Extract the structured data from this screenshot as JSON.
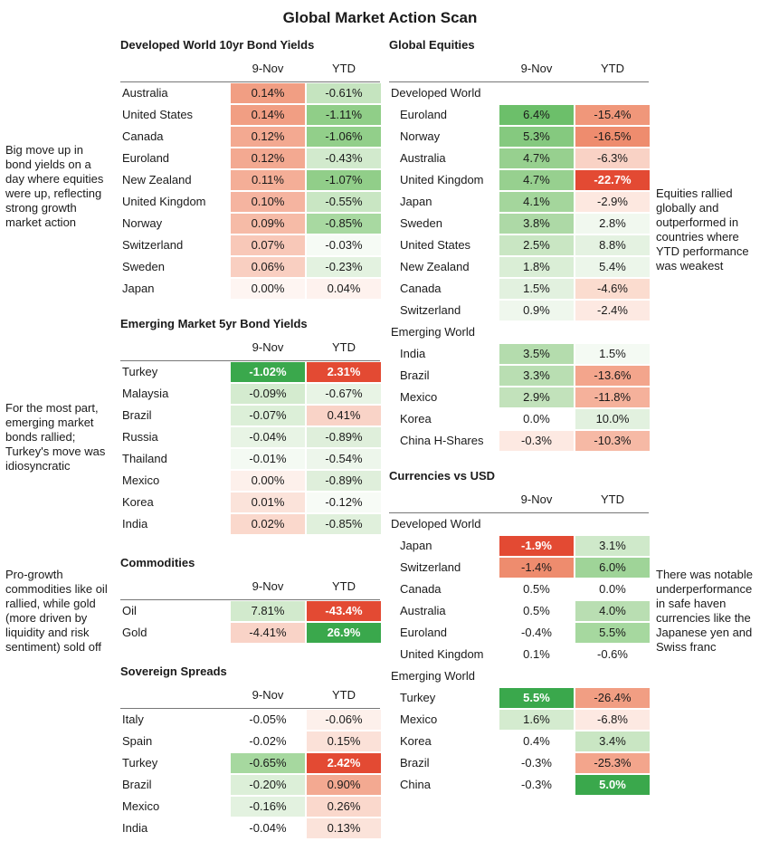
{
  "title": "Global Market Action Scan",
  "notes": [
    "Big move up in bond yields on a day where equities were up, reflecting strong growth market action",
    "For the most part, emerging market bonds rallied; Turkey's move was idiosyncratic",
    "Pro-growth commodities like oil rallied, while gold (more driven by liquidity and risk sentiment) sold off",
    "Equities rallied globally and outperformed in countries where YTD performance was weakest",
    "There was notable underperformance in safe haven currencies like the Japanese yen and Swiss franc"
  ],
  "sections": {
    "dev_bonds": {
      "title": "Developed World 10yr Bond Yields",
      "columns": [
        "9-Nov",
        "YTD"
      ],
      "rows": [
        {
          "label": "Australia",
          "v1": "0.14%",
          "v2": "-0.61%",
          "c1": "#f19e83",
          "c2": "#c5e4bf"
        },
        {
          "label": "United States",
          "v1": "0.14%",
          "v2": "-1.11%",
          "c1": "#f19e83",
          "c2": "#90ce88"
        },
        {
          "label": "Canada",
          "v1": "0.12%",
          "v2": "-1.06%",
          "c1": "#f3a991",
          "c2": "#92cf8a"
        },
        {
          "label": "Euroland",
          "v1": "0.12%",
          "v2": "-0.43%",
          "c1": "#f3a991",
          "c2": "#d2eacd"
        },
        {
          "label": "New Zealand",
          "v1": "0.11%",
          "v2": "-1.07%",
          "c1": "#f4ae97",
          "c2": "#91ce89"
        },
        {
          "label": "United Kingdom",
          "v1": "0.10%",
          "v2": "-0.55%",
          "c1": "#f5b4a0",
          "c2": "#c9e6c3"
        },
        {
          "label": "Norway",
          "v1": "0.09%",
          "v2": "-0.85%",
          "c1": "#f6bba7",
          "c2": "#a8d9a1"
        },
        {
          "label": "Switzerland",
          "v1": "0.07%",
          "v2": "-0.03%",
          "c1": "#f8c8b8",
          "c2": "#f6fbf5"
        },
        {
          "label": "Sweden",
          "v1": "0.06%",
          "v2": "-0.23%",
          "c1": "#f9cfc1",
          "c2": "#e3f2e0"
        },
        {
          "label": "Japan",
          "v1": "0.00%",
          "v2": "0.04%",
          "c1": "#fef5f2",
          "c2": "#fef2ee"
        }
      ]
    },
    "em_bonds": {
      "title": "Emerging Market 5yr Bond Yields",
      "columns": [
        "9-Nov",
        "YTD"
      ],
      "rows": [
        {
          "label": "Turkey",
          "v1": "-1.02%",
          "v2": "2.31%",
          "c1": "#3aa84c",
          "c2": "#e34a33",
          "b1": true,
          "b2": true
        },
        {
          "label": "Malaysia",
          "v1": "-0.09%",
          "v2": "-0.67%",
          "c1": "#d4ebcf",
          "c2": "#e8f4e5"
        },
        {
          "label": "Brazil",
          "v1": "-0.07%",
          "v2": "0.41%",
          "c1": "#dcefd8",
          "c2": "#f9d3c7"
        },
        {
          "label": "Russia",
          "v1": "-0.04%",
          "v2": "-0.89%",
          "c1": "#e8f4e5",
          "c2": "#dfefdb"
        },
        {
          "label": "Thailand",
          "v1": "-0.01%",
          "v2": "-0.54%",
          "c1": "#f4faf3",
          "c2": "#edf6eb"
        },
        {
          "label": "Mexico",
          "v1": "0.00%",
          "v2": "-0.89%",
          "c1": "#fdf0eb",
          "c2": "#dfefdb"
        },
        {
          "label": "Korea",
          "v1": "0.01%",
          "v2": "-0.12%",
          "c1": "#fbe3da",
          "c2": "#f7fbf6"
        },
        {
          "label": "India",
          "v1": "0.02%",
          "v2": "-0.85%",
          "c1": "#fad8cc",
          "c2": "#e0f0dc"
        }
      ]
    },
    "commodities": {
      "title": "Commodities",
      "columns": [
        "9-Nov",
        "YTD"
      ],
      "rows": [
        {
          "label": "Oil",
          "v1": "7.81%",
          "v2": "-43.4%",
          "c1": "#d2eacd",
          "c2": "#e34a33",
          "b2": true
        },
        {
          "label": "Gold",
          "v1": "-4.41%",
          "v2": "26.9%",
          "c1": "#f9d3c7",
          "c2": "#3aa84c",
          "b2": true
        }
      ]
    },
    "spreads": {
      "title": "Sovereign Spreads",
      "columns": [
        "9-Nov",
        "YTD"
      ],
      "rows": [
        {
          "label": "Italy",
          "v1": "-0.05%",
          "v2": "-0.06%",
          "c1": "#ffffff",
          "c2": "#fdf0eb"
        },
        {
          "label": "Spain",
          "v1": "-0.02%",
          "v2": "0.15%",
          "c1": "#ffffff",
          "c2": "#fbe1d8"
        },
        {
          "label": "Turkey",
          "v1": "-0.65%",
          "v2": "2.42%",
          "c1": "#a6d89f",
          "c2": "#e34a33",
          "b2": true
        },
        {
          "label": "Brazil",
          "v1": "-0.20%",
          "v2": "0.90%",
          "c1": "#dcefd8",
          "c2": "#f3a991"
        },
        {
          "label": "Mexico",
          "v1": "-0.16%",
          "v2": "0.26%",
          "c1": "#e3f2e0",
          "c2": "#fad8cc"
        },
        {
          "label": "India",
          "v1": "-0.04%",
          "v2": "0.13%",
          "c1": "#ffffff",
          "c2": "#fbe3da"
        }
      ]
    },
    "equities": {
      "title": "Global Equities",
      "columns": [
        "9-Nov",
        "YTD"
      ],
      "groups": [
        {
          "name": "Developed World",
          "rows": [
            {
              "label": "Euroland",
              "v1": "6.4%",
              "v2": "-15.4%",
              "c1": "#6cbf6a",
              "c2": "#f0977a"
            },
            {
              "label": "Norway",
              "v1": "5.3%",
              "v2": "-16.5%",
              "c1": "#85c97f",
              "c2": "#ee8c6e"
            },
            {
              "label": "Australia",
              "v1": "4.7%",
              "v2": "-6.3%",
              "c1": "#97d08f",
              "c2": "#f9d2c5"
            },
            {
              "label": "United Kingdom",
              "v1": "4.7%",
              "v2": "-22.7%",
              "c1": "#97d08f",
              "c2": "#e34a33",
              "b2": true
            },
            {
              "label": "Japan",
              "v1": "4.1%",
              "v2": "-2.9%",
              "c1": "#a4d69c",
              "c2": "#fde8e0"
            },
            {
              "label": "Sweden",
              "v1": "3.8%",
              "v2": "2.8%",
              "c1": "#add9a6",
              "c2": "#f1f8ef"
            },
            {
              "label": "United States",
              "v1": "2.5%",
              "v2": "8.8%",
              "c1": "#c9e6c3",
              "c2": "#e4f2e1"
            },
            {
              "label": "New Zealand",
              "v1": "1.8%",
              "v2": "5.4%",
              "c1": "#daeed6",
              "c2": "#ecf6ea"
            },
            {
              "label": "Canada",
              "v1": "1.5%",
              "v2": "-4.6%",
              "c1": "#e2f1df",
              "c2": "#fbdccf"
            },
            {
              "label": "Switzerland",
              "v1": "0.9%",
              "v2": "-2.4%",
              "c1": "#eff7ed",
              "c2": "#fde9e2"
            }
          ]
        },
        {
          "name": "Emerging World",
          "rows": [
            {
              "label": "India",
              "v1": "3.5%",
              "v2": "1.5%",
              "c1": "#b4dcad",
              "c2": "#f4faf3"
            },
            {
              "label": "Brazil",
              "v1": "3.3%",
              "v2": "-13.6%",
              "c1": "#b9deb2",
              "c2": "#f3a58c"
            },
            {
              "label": "Mexico",
              "v1": "2.9%",
              "v2": "-11.8%",
              "c1": "#c2e2bb",
              "c2": "#f5b19b"
            },
            {
              "label": "Korea",
              "v1": "0.0%",
              "v2": "10.0%",
              "c1": "#ffffff",
              "c2": "#e2f1df"
            },
            {
              "label": "China H-Shares",
              "v1": "-0.3%",
              "v2": "-10.3%",
              "c1": "#fde9e2",
              "c2": "#f6b9a5"
            }
          ]
        }
      ]
    },
    "currencies": {
      "title": "Currencies vs USD",
      "columns": [
        "9-Nov",
        "YTD"
      ],
      "groups": [
        {
          "name": "Developed World",
          "rows": [
            {
              "label": "Japan",
              "v1": "-1.9%",
              "v2": "3.1%",
              "c1": "#e34a33",
              "c2": "#cfe9ca",
              "b1": true
            },
            {
              "label": "Switzerland",
              "v1": "-1.4%",
              "v2": "6.0%",
              "c1": "#ee8c6e",
              "c2": "#9fd498"
            },
            {
              "label": "Canada",
              "v1": "0.5%",
              "v2": "0.0%",
              "c1": "#ffffff",
              "c2": "#ffffff"
            },
            {
              "label": "Australia",
              "v1": "0.5%",
              "v2": "4.0%",
              "c1": "#ffffff",
              "c2": "#b9deb2"
            },
            {
              "label": "Euroland",
              "v1": "-0.4%",
              "v2": "5.5%",
              "c1": "#ffffff",
              "c2": "#a6d89f"
            },
            {
              "label": "United Kingdom",
              "v1": "0.1%",
              "v2": "-0.6%",
              "c1": "#ffffff",
              "c2": "#ffffff"
            }
          ]
        },
        {
          "name": "Emerging World",
          "rows": [
            {
              "label": "Turkey",
              "v1": "5.5%",
              "v2": "-26.4%",
              "c1": "#3aa84c",
              "c2": "#f19e83",
              "b1": true
            },
            {
              "label": "Mexico",
              "v1": "1.6%",
              "v2": "-6.8%",
              "c1": "#d4ebcf",
              "c2": "#fde9e2"
            },
            {
              "label": "Korea",
              "v1": "0.4%",
              "v2": "3.4%",
              "c1": "#ffffff",
              "c2": "#c9e6c3"
            },
            {
              "label": "Brazil",
              "v1": "-0.3%",
              "v2": "-25.3%",
              "c1": "#ffffff",
              "c2": "#f3a58c"
            },
            {
              "label": "China",
              "v1": "-0.3%",
              "v2": "5.0%",
              "c1": "#ffffff",
              "c2": "#3aa84c",
              "b2": true
            }
          ]
        }
      ]
    }
  }
}
